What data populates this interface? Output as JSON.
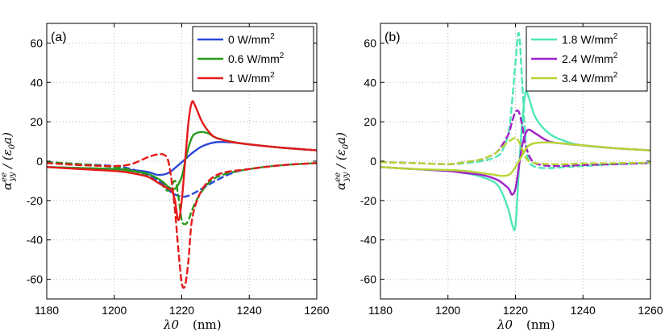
{
  "chart_data": [
    {
      "type": "line",
      "panel_label": "(a)",
      "xlabel": "λ0",
      "xunit": "(nm)",
      "ylabel": "α_yy^ee / (ε0 a)",
      "xlim": [
        1180,
        1260
      ],
      "ylim": [
        -70,
        70
      ],
      "xticks": [
        "1180",
        "1200",
        "1220",
        "1240",
        "1260"
      ],
      "yticks": [
        "-60",
        "-40",
        "-20",
        "0",
        "20",
        "40",
        "60"
      ],
      "grid": true,
      "legend_position": "top-right",
      "legend": [
        "0 W/mm",
        "0.6 W/mm",
        "1 W/mm"
      ],
      "legend_sup": "2",
      "series": [
        {
          "name": "0 W/mm2",
          "color": "#2b47d9",
          "style": "solid",
          "x": [
            1180,
            1190,
            1200,
            1205,
            1210,
            1213,
            1216,
            1219,
            1221,
            1223,
            1226,
            1230,
            1235,
            1240,
            1250,
            1260
          ],
          "y": [
            -3,
            -3.5,
            -4,
            -4.5,
            -5.5,
            -7,
            -6,
            -2,
            1,
            4,
            7.5,
            9.6,
            9.5,
            8.5,
            6.8,
            5.5
          ]
        },
        {
          "name": "0 W/mm2",
          "color": "#2b47d9",
          "style": "dashed",
          "x": [
            1180,
            1190,
            1200,
            1205,
            1210,
            1214,
            1217,
            1220,
            1222,
            1225,
            1230,
            1235,
            1240,
            1250,
            1260
          ],
          "y": [
            -0.5,
            -1.5,
            -2.5,
            -4,
            -7,
            -11,
            -16,
            -18,
            -17.5,
            -15,
            -10,
            -6,
            -4,
            -2,
            -1
          ]
        },
        {
          "name": "0.6 W/mm2",
          "color": "#2a9a1c",
          "style": "solid",
          "x": [
            1180,
            1190,
            1200,
            1205,
            1210,
            1214,
            1216,
            1218,
            1220,
            1221,
            1222,
            1223,
            1224,
            1226,
            1228,
            1230,
            1235,
            1240,
            1250,
            1260
          ],
          "y": [
            -3,
            -3.5,
            -4,
            -5,
            -6.5,
            -10,
            -13,
            -14,
            -8,
            0,
            7,
            12,
            14,
            14.8,
            14,
            12,
            9.8,
            8.5,
            6.8,
            5.5
          ]
        },
        {
          "name": "0.6 W/mm2",
          "color": "#2a9a1c",
          "style": "dashed",
          "x": [
            1180,
            1190,
            1200,
            1205,
            1210,
            1214,
            1216,
            1218,
            1219,
            1220,
            1221,
            1222,
            1223,
            1225,
            1228,
            1232,
            1240,
            1250,
            1260
          ],
          "y": [
            -0.5,
            -1.5,
            -3,
            -4.5,
            -8,
            -12,
            -15,
            -10,
            -18,
            -30,
            -32,
            -30,
            -25,
            -18,
            -11,
            -7,
            -4,
            -2,
            -1
          ]
        },
        {
          "name": "1 W/mm2",
          "color": "#e51a1a",
          "style": "solid",
          "x": [
            1180,
            1190,
            1200,
            1205,
            1210,
            1213,
            1215,
            1217,
            1218,
            1219,
            1220,
            1221,
            1222,
            1223,
            1224,
            1226,
            1228,
            1230,
            1234,
            1240,
            1250,
            1260
          ],
          "y": [
            -3,
            -4,
            -5,
            -6,
            -8,
            -11,
            -13,
            -15,
            -20,
            -30,
            -20,
            0,
            20,
            30,
            28,
            20,
            15,
            12,
            10,
            8.5,
            6.8,
            5.5
          ]
        },
        {
          "name": "1 W/mm2",
          "color": "#e51a1a",
          "style": "dashed",
          "x": [
            1180,
            1190,
            1200,
            1205,
            1210,
            1213,
            1215,
            1216,
            1217,
            1218,
            1219,
            1220,
            1221,
            1222,
            1223,
            1225,
            1228,
            1232,
            1240,
            1250,
            1260
          ],
          "y": [
            -1,
            -2,
            -2.5,
            -1.5,
            2,
            3.5,
            3,
            0,
            -10,
            -25,
            -45,
            -62,
            -63,
            -50,
            -30,
            -18,
            -10,
            -6,
            -4,
            -2,
            -1
          ]
        }
      ]
    },
    {
      "type": "line",
      "panel_label": "(b)",
      "xlabel": "λ0",
      "xunit": "(nm)",
      "ylabel": "α_yy^ee / (ε0 a)",
      "xlim": [
        1180,
        1260
      ],
      "ylim": [
        -70,
        70
      ],
      "xticks": [
        "1180",
        "1200",
        "1220",
        "1240",
        "1260"
      ],
      "yticks": [
        "-60",
        "-40",
        "-20",
        "0",
        "20",
        "40",
        "60"
      ],
      "grid": true,
      "legend_position": "top-right",
      "legend": [
        "1.8 W/mm",
        "2.4 W/mm",
        "3.4 W/mm"
      ],
      "legend_sup": "2",
      "series": [
        {
          "name": "1.8 W/mm2",
          "color": "#4ee6b8",
          "style": "solid",
          "x": [
            1180,
            1190,
            1200,
            1205,
            1210,
            1214,
            1216,
            1218,
            1219,
            1220,
            1221,
            1222,
            1223,
            1224,
            1226,
            1230,
            1235,
            1240,
            1250,
            1260
          ],
          "y": [
            -3,
            -4,
            -5,
            -6,
            -8,
            -11,
            -16,
            -25,
            -32,
            -33,
            -5,
            20,
            35,
            32,
            22,
            14,
            10,
            8,
            6.5,
            5.5
          ]
        },
        {
          "name": "1.8 W/mm2",
          "color": "#4ee6b8",
          "style": "dashed",
          "x": [
            1180,
            1190,
            1200,
            1205,
            1210,
            1214,
            1216,
            1218,
            1219,
            1220,
            1221,
            1222,
            1223,
            1224,
            1226,
            1230,
            1235,
            1240,
            1250,
            1260
          ],
          "y": [
            -0.5,
            -1,
            -1.5,
            -1,
            0,
            2,
            5,
            15,
            30,
            50,
            65,
            40,
            10,
            0,
            -3,
            -3.5,
            -3,
            -2.5,
            -1.5,
            -1
          ]
        },
        {
          "name": "2.4 W/mm2",
          "color": "#a020c8",
          "style": "solid",
          "x": [
            1180,
            1190,
            1200,
            1205,
            1210,
            1214,
            1216,
            1218,
            1219,
            1220,
            1221,
            1222,
            1223,
            1224,
            1226,
            1230,
            1235,
            1240,
            1250,
            1260
          ],
          "y": [
            -3,
            -4,
            -5,
            -6,
            -7,
            -9,
            -11,
            -14,
            -17,
            -14,
            -3,
            8,
            14,
            16,
            14,
            10,
            8.8,
            8,
            6.5,
            5.5
          ]
        },
        {
          "name": "2.4 W/mm2",
          "color": "#a020c8",
          "style": "dashed",
          "x": [
            1180,
            1190,
            1200,
            1205,
            1210,
            1214,
            1216,
            1218,
            1219,
            1220,
            1221,
            1222,
            1223,
            1225,
            1228,
            1232,
            1240,
            1250,
            1260
          ],
          "y": [
            -0.5,
            -1,
            -1.5,
            -0.5,
            1,
            4,
            8,
            14,
            20,
            25,
            25,
            18,
            8,
            0,
            -2,
            -2.5,
            -2,
            -1.5,
            -1
          ]
        },
        {
          "name": "3.4 W/mm2",
          "color": "#b6d633",
          "style": "solid",
          "x": [
            1180,
            1190,
            1200,
            1205,
            1210,
            1214,
            1216,
            1218,
            1219,
            1220,
            1221,
            1222,
            1223,
            1224,
            1226,
            1230,
            1235,
            1240,
            1250,
            1260
          ],
          "y": [
            -3,
            -4,
            -4.5,
            -5,
            -6,
            -7,
            -7.5,
            -7,
            -5.5,
            -3,
            0,
            3,
            6,
            8,
            9.2,
            9.5,
            8.8,
            8,
            6.5,
            5.5
          ]
        },
        {
          "name": "3.4 W/mm2",
          "color": "#b6d633",
          "style": "dashed",
          "x": [
            1180,
            1190,
            1200,
            1205,
            1210,
            1214,
            1216,
            1218,
            1219,
            1220,
            1221,
            1222,
            1223,
            1224,
            1226,
            1230,
            1235,
            1240,
            1250,
            1260
          ],
          "y": [
            -0.5,
            -1,
            -1.5,
            -0.5,
            1,
            4,
            7,
            10,
            11,
            12,
            10,
            6,
            2,
            0,
            -1,
            -1.5,
            -1.5,
            -1.2,
            -1,
            -0.8
          ]
        }
      ]
    }
  ]
}
